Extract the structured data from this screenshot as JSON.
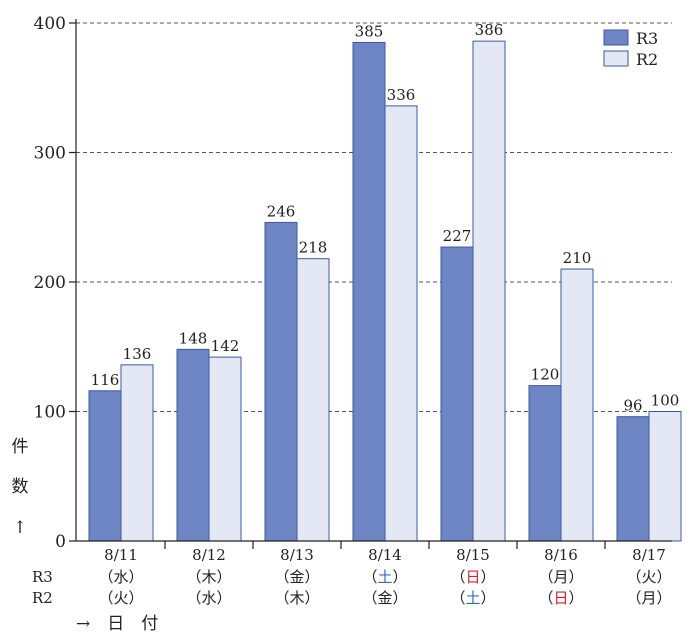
{
  "chart_data": {
    "type": "bar",
    "categories": [
      "8/11",
      "8/12",
      "8/13",
      "8/14",
      "8/15",
      "8/16",
      "8/17"
    ],
    "day_rows": {
      "R3": [
        "（水）",
        "（木）",
        "（金）",
        "（土）",
        "（日）",
        "（月）",
        "（火）"
      ],
      "R2": [
        "（火）",
        "（水）",
        "（木）",
        "（金）",
        "（土）",
        "（日）",
        "（月）"
      ]
    },
    "row_labels": [
      "R3",
      "R2"
    ],
    "series": [
      {
        "name": "R3",
        "values": [
          116,
          148,
          246,
          385,
          227,
          120,
          96
        ],
        "color": "#6e85c3",
        "border": "#3d58a3"
      },
      {
        "name": "R2",
        "values": [
          136,
          142,
          218,
          336,
          386,
          210,
          100
        ],
        "color": "#e4e8f5",
        "border": "#3d58a3"
      }
    ],
    "day_colors": {
      "土": "#2f6fc0",
      "日": "#d9232a",
      "default": "#222222"
    },
    "ylim": [
      0,
      400
    ],
    "yticks": [
      0,
      100,
      200,
      300,
      400
    ],
    "ylabel": "件\n数\n↑",
    "xlabel": "→　日　付",
    "legend_position": "top-right",
    "grid": true
  }
}
